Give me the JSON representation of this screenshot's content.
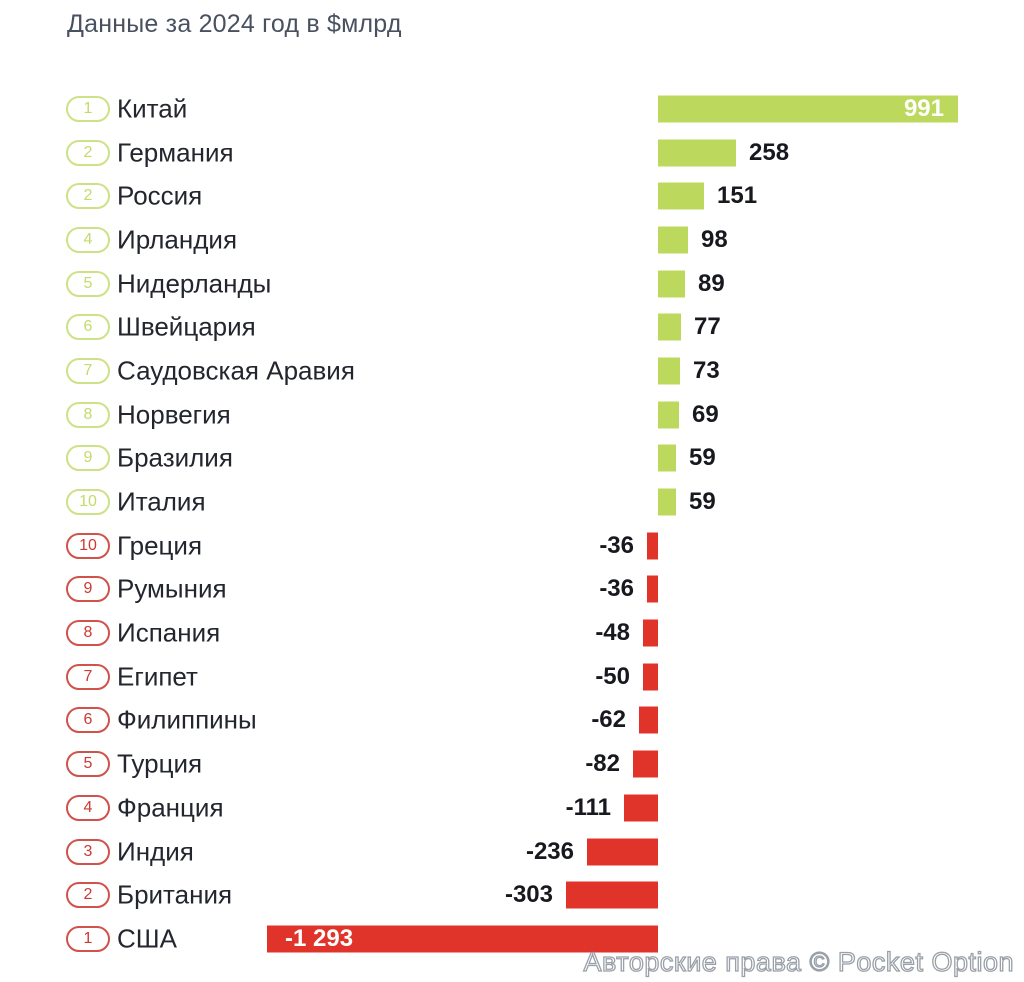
{
  "chart_data": {
    "type": "bar",
    "orientation": "horizontal",
    "title": "Данные за 2024 год в $млрд",
    "xlabel": "",
    "ylabel": "",
    "unit": "$млрд",
    "year": "2024",
    "xlim": [
      -1293,
      991
    ],
    "grid": false,
    "positive_color": "#bcd85d",
    "negative_color": "#e0342b",
    "categories": [
      "Китай",
      "Германия",
      "Россия",
      "Ирландия",
      "Нидерланды",
      "Швейцария",
      "Саудовская Аравия",
      "Норвегия",
      "Бразилия",
      "Италия",
      "Греция",
      "Румыния",
      "Испания",
      "Египет",
      "Филиппины",
      "Турция",
      "Франция",
      "Индия",
      "Британия",
      "США"
    ],
    "values": [
      991,
      258,
      151,
      98,
      89,
      77,
      73,
      69,
      59,
      59,
      -36,
      -36,
      -48,
      -50,
      -62,
      -82,
      -111,
      -236,
      -303,
      -1293
    ],
    "rows": [
      {
        "rank": "1",
        "country": "Китай",
        "value": 991,
        "value_label": "991"
      },
      {
        "rank": "2",
        "country": "Германия",
        "value": 258,
        "value_label": "258"
      },
      {
        "rank": "2",
        "country": "Россия",
        "value": 151,
        "value_label": "151"
      },
      {
        "rank": "4",
        "country": "Ирландия",
        "value": 98,
        "value_label": "98"
      },
      {
        "rank": "5",
        "country": "Нидерланды",
        "value": 89,
        "value_label": "89"
      },
      {
        "rank": "6",
        "country": "Швейцария",
        "value": 77,
        "value_label": "77"
      },
      {
        "rank": "7",
        "country": "Саудовская Аравия",
        "value": 73,
        "value_label": "73"
      },
      {
        "rank": "8",
        "country": "Норвегия",
        "value": 69,
        "value_label": "69"
      },
      {
        "rank": "9",
        "country": "Бразилия",
        "value": 59,
        "value_label": "59"
      },
      {
        "rank": "10",
        "country": "Италия",
        "value": 59,
        "value_label": "59"
      },
      {
        "rank": "10",
        "country": "Греция",
        "value": -36,
        "value_label": "-36"
      },
      {
        "rank": "9",
        "country": "Румыния",
        "value": -36,
        "value_label": "-36"
      },
      {
        "rank": "8",
        "country": "Испания",
        "value": -48,
        "value_label": "-48"
      },
      {
        "rank": "7",
        "country": "Египет",
        "value": -50,
        "value_label": "-50"
      },
      {
        "rank": "6",
        "country": "Филиппины",
        "value": -62,
        "value_label": "-62"
      },
      {
        "rank": "5",
        "country": "Турция",
        "value": -82,
        "value_label": "-82"
      },
      {
        "rank": "4",
        "country": "Франция",
        "value": -111,
        "value_label": "-111"
      },
      {
        "rank": "3",
        "country": "Индия",
        "value": -236,
        "value_label": "-236"
      },
      {
        "rank": "2",
        "country": "Британия",
        "value": -303,
        "value_label": "-303"
      },
      {
        "rank": "1",
        "country": "США",
        "value": -1293,
        "value_label": "-1 293"
      }
    ]
  },
  "watermark": "Авторские права © Pocket Option"
}
